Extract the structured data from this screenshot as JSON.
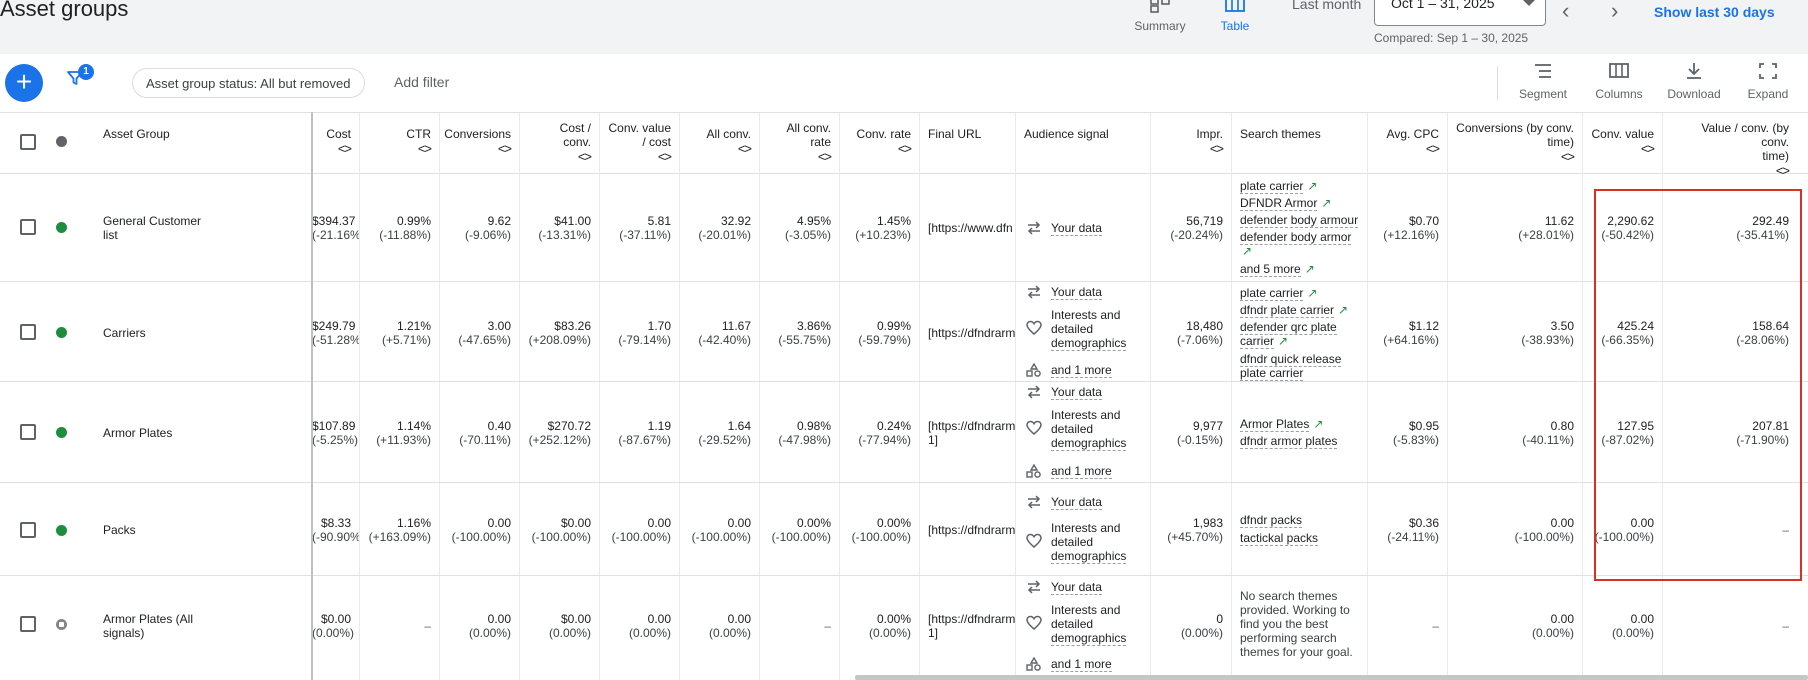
{
  "header": {
    "title": "Asset groups",
    "views": [
      {
        "label": "Summary",
        "icon": "summary-icon"
      },
      {
        "label": "Table",
        "icon": "table-icon"
      }
    ],
    "date_label": "Last month",
    "date_value": "Oct 1 – 31, 2025",
    "compared": "Compared: Sep 1 – 30, 2025",
    "prev_arrow": "‹",
    "next_arrow": "›",
    "show_last": "Show last 30 days"
  },
  "toolbar": {
    "filter_count": "1",
    "status_chip": "Asset group status: All but removed",
    "add_filter": "Add filter",
    "buttons": [
      {
        "label": "Segment",
        "icon": "segment-icon"
      },
      {
        "label": "Columns",
        "icon": "columns-icon"
      },
      {
        "label": "Download",
        "icon": "download-icon"
      },
      {
        "label": "Expand",
        "icon": "expand-icon"
      }
    ]
  },
  "columns": {
    "asset_group": "Asset Group",
    "cost": "Cost",
    "ctr": "CTR",
    "conversions": "Conversions",
    "cost_conv_1": "Cost /",
    "cost_conv_2": "conv.",
    "cvc_1": "Conv. value",
    "cvc_2": "/ cost",
    "all_conv": "All conv.",
    "acr_1": "All conv.",
    "acr_2": "rate",
    "conv_rate": "Conv. rate",
    "final_url": "Final URL",
    "audience": "Audience signal",
    "impr": "Impr.",
    "themes": "Search themes",
    "avg_cpc": "Avg. CPC",
    "cbt_1": "Conversions (by conv.",
    "cbt_2": "time)",
    "conv_value": "Conv. value",
    "vpc_1": "Value / conv. (by conv.",
    "vpc_2": "time)",
    "sort": "<>"
  },
  "rows": [
    {
      "name": [
        "General Customer",
        "list"
      ],
      "cost": [
        "$394.37",
        "(-21.16%)"
      ],
      "ctr": [
        "0.99%",
        "(-11.88%)"
      ],
      "conversions": [
        "9.62",
        "(-9.06%)"
      ],
      "cost_conv": [
        "$41.00",
        "(-13.31%)"
      ],
      "cvc": [
        "5.81",
        "(-37.11%)"
      ],
      "all_conv": [
        "32.92",
        "(-20.01%)"
      ],
      "acr": [
        "4.95%",
        "(-3.05%)"
      ],
      "conv_rate": [
        "1.45%",
        "(+10.23%)"
      ],
      "url": [
        "[https://www.dfn"
      ],
      "audience": [
        "Your data"
      ],
      "impr": [
        "56,719",
        "(-20.24%)"
      ],
      "themes": [
        "plate carrier",
        "DFNDR Armor",
        "defender body armour",
        "defender body armor",
        "",
        "and 5 more"
      ],
      "avg_cpc": [
        "$0.70",
        "(+12.16%)"
      ],
      "cbt": [
        "11.62",
        "(+28.01%)"
      ],
      "conv_value": [
        "2,290.62",
        "(-50.42%)"
      ],
      "vpc": [
        "292.49",
        "(-35.41%)"
      ]
    },
    {
      "name": [
        "Carriers"
      ],
      "cost": [
        "$249.79",
        "(-51.28%)"
      ],
      "ctr": [
        "1.21%",
        "(+5.71%)"
      ],
      "conversions": [
        "3.00",
        "(-47.65%)"
      ],
      "cost_conv": [
        "$83.26",
        "(+208.09%)"
      ],
      "cvc": [
        "1.70",
        "(-79.14%)"
      ],
      "all_conv": [
        "11.67",
        "(-42.40%)"
      ],
      "acr": [
        "3.86%",
        "(-55.75%)"
      ],
      "conv_rate": [
        "0.99%",
        "(-59.79%)"
      ],
      "url": [
        "[https://dfndrarm"
      ],
      "audience": [
        "Your data",
        "Interests and",
        "detailed",
        "demographics",
        "and 1 more"
      ],
      "impr": [
        "18,480",
        "(-7.06%)"
      ],
      "themes": [
        "plate carrier",
        "dfndr plate carrier",
        "defender qrc plate",
        "carrier",
        "dfndr quick release",
        "plate carrier"
      ],
      "avg_cpc": [
        "$1.12",
        "(+64.16%)"
      ],
      "cbt": [
        "3.50",
        "(-38.93%)"
      ],
      "conv_value": [
        "425.24",
        "(-66.35%)"
      ],
      "vpc": [
        "158.64",
        "(-28.06%)"
      ]
    },
    {
      "name": [
        "Armor Plates"
      ],
      "cost": [
        "$107.89",
        "(-5.25%)"
      ],
      "ctr": [
        "1.14%",
        "(+11.93%)"
      ],
      "conversions": [
        "0.40",
        "(-70.11%)"
      ],
      "cost_conv": [
        "$270.72",
        "(+252.12%)"
      ],
      "cvc": [
        "1.19",
        "(-87.67%)"
      ],
      "all_conv": [
        "1.64",
        "(-29.52%)"
      ],
      "acr": [
        "0.98%",
        "(-47.98%)"
      ],
      "conv_rate": [
        "0.24%",
        "(-77.94%)"
      ],
      "url": [
        "[https://dfndrarm",
        "1]"
      ],
      "audience": [
        "Your data",
        "Interests and",
        "detailed",
        "demographics",
        "and 1 more"
      ],
      "impr": [
        "9,977",
        "(-0.15%)"
      ],
      "themes": [
        "Armor Plates",
        "dfndr armor plates"
      ],
      "avg_cpc": [
        "$0.95",
        "(-5.83%)"
      ],
      "cbt": [
        "0.80",
        "(-40.11%)"
      ],
      "conv_value": [
        "127.95",
        "(-87.02%)"
      ],
      "vpc": [
        "207.81",
        "(-71.90%)"
      ]
    },
    {
      "name": [
        "Packs"
      ],
      "cost": [
        "$8.33",
        "(-90.90%)"
      ],
      "ctr": [
        "1.16%",
        "(+163.09%)"
      ],
      "conversions": [
        "0.00",
        "(-100.00%)"
      ],
      "cost_conv": [
        "$0.00",
        "(-100.00%)"
      ],
      "cvc": [
        "0.00",
        "(-100.00%)"
      ],
      "all_conv": [
        "0.00",
        "(-100.00%)"
      ],
      "acr": [
        "0.00%",
        "(-100.00%)"
      ],
      "conv_rate": [
        "0.00%",
        "(-100.00%)"
      ],
      "url": [
        "[https://dfndrarm"
      ],
      "audience": [
        "Your data",
        "Interests and",
        "detailed",
        "demographics"
      ],
      "impr": [
        "1,983",
        "(+45.70%)"
      ],
      "themes": [
        "dfndr packs",
        "tactickal packs"
      ],
      "avg_cpc": [
        "$0.36",
        "(-24.11%)"
      ],
      "cbt": [
        "0.00",
        "(-100.00%)"
      ],
      "conv_value": [
        "0.00",
        "(-100.00%)"
      ],
      "vpc": [
        "–"
      ]
    },
    {
      "name": [
        "Armor Plates (All",
        "signals)"
      ],
      "cost": [
        "$0.00",
        "(0.00%)"
      ],
      "ctr": [
        "–"
      ],
      "conversions": [
        "0.00",
        "(0.00%)"
      ],
      "cost_conv": [
        "$0.00",
        "(0.00%)"
      ],
      "cvc": [
        "0.00",
        "(0.00%)"
      ],
      "all_conv": [
        "0.00",
        "(0.00%)"
      ],
      "acr": [
        "–"
      ],
      "conv_rate": [
        "0.00%",
        "(0.00%)"
      ],
      "url": [
        "[https://dfndrarm",
        "1]"
      ],
      "audience": [
        "Your data",
        "Interests and",
        "detailed",
        "demographics",
        "and 1 more"
      ],
      "impr": [
        "0",
        "(0.00%)"
      ],
      "themes": [
        "No search themes",
        "provided. Working to",
        "find you the best",
        "performing search",
        "themes for your goal."
      ],
      "avg_cpc": [
        "–"
      ],
      "cbt": [
        "0.00",
        "(0.00%)"
      ],
      "conv_value": [
        "0.00",
        "(0.00%)"
      ],
      "vpc": [
        "–"
      ]
    }
  ]
}
